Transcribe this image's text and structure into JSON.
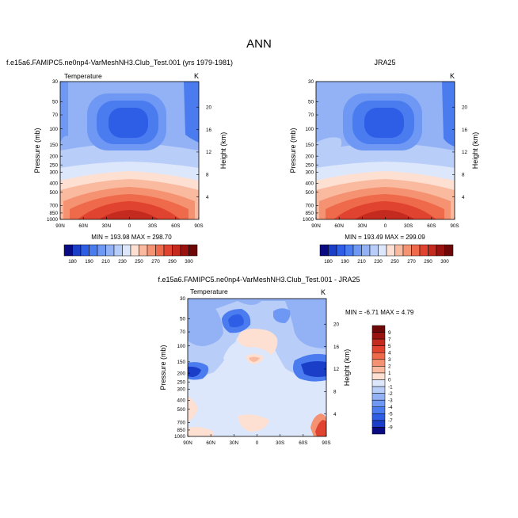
{
  "figure": {
    "title": "ANN"
  },
  "chart_data": [
    {
      "type": "heatmap",
      "title": "f.e15a6.FAMIPC5.ne0np4-VarMeshNH3.Club_Test.001 (yrs 1979-1981)",
      "var_label": "Temperature",
      "units": "K",
      "ylabel": "Pressure (mb)",
      "ylabel_right": "Height (km)",
      "x_ticks": [
        "90N",
        "60N",
        "30N",
        "0",
        "30S",
        "60S",
        "90S"
      ],
      "y_ticks": [
        "30",
        "50",
        "70",
        "100",
        "150",
        "200",
        "250",
        "300",
        "400",
        "500",
        "700",
        "850",
        "1000"
      ],
      "y_ticks_right": [
        "20",
        "16",
        "12",
        "8",
        "4"
      ],
      "stats": "MIN = 193.98   MAX = 298.70",
      "colorbar_labels": [
        "180",
        "190",
        "210",
        "230",
        "250",
        "270",
        "290",
        "300"
      ]
    },
    {
      "type": "heatmap",
      "title": "JRA25",
      "var_label": "",
      "units": "K",
      "ylabel": "Pressure (mb)",
      "ylabel_right": "Height (km)",
      "x_ticks": [
        "90N",
        "60N",
        "30N",
        "0",
        "30S",
        "60S",
        "90S"
      ],
      "y_ticks": [
        "30",
        "50",
        "70",
        "100",
        "150",
        "200",
        "250",
        "300",
        "400",
        "500",
        "700",
        "850",
        "1000"
      ],
      "y_ticks_right": [
        "20",
        "16",
        "12",
        "8",
        "4"
      ],
      "stats": "MIN = 193.49   MAX = 299.09",
      "colorbar_labels": [
        "180",
        "190",
        "210",
        "230",
        "250",
        "270",
        "290",
        "300"
      ]
    },
    {
      "type": "heatmap",
      "title": "f.e15a6.FAMIPC5.ne0np4-VarMeshNH3.Club_Test.001 - JRA25",
      "var_label": "Temperature",
      "units": "K",
      "ylabel": "Pressure (mb)",
      "ylabel_right": "Height (km)",
      "x_ticks": [
        "90N",
        "60N",
        "30N",
        "0",
        "30S",
        "60S",
        "90S"
      ],
      "y_ticks": [
        "30",
        "50",
        "70",
        "100",
        "150",
        "200",
        "250",
        "300",
        "400",
        "500",
        "700",
        "850",
        "1000"
      ],
      "y_ticks_right": [
        "20",
        "16",
        "12",
        "8",
        "4"
      ],
      "stats": "MIN = -6.71   MAX =  4.79",
      "colorbar_labels": [
        "9",
        "7",
        "5",
        "4",
        "3",
        "2",
        "1",
        "0",
        "-1",
        "-2",
        "-3",
        "-4",
        "-5",
        "-7",
        "-9"
      ]
    }
  ],
  "palette": [
    "#0a0a82",
    "#1a3ec8",
    "#2e5ee6",
    "#4a7cf0",
    "#6e98f4",
    "#93b2f6",
    "#b8cdf8",
    "#dde7fb",
    "#fde0d2",
    "#f9baa0",
    "#f59272",
    "#ee6a4a",
    "#e04430",
    "#c42a1e",
    "#9a1210",
    "#6e0808"
  ]
}
